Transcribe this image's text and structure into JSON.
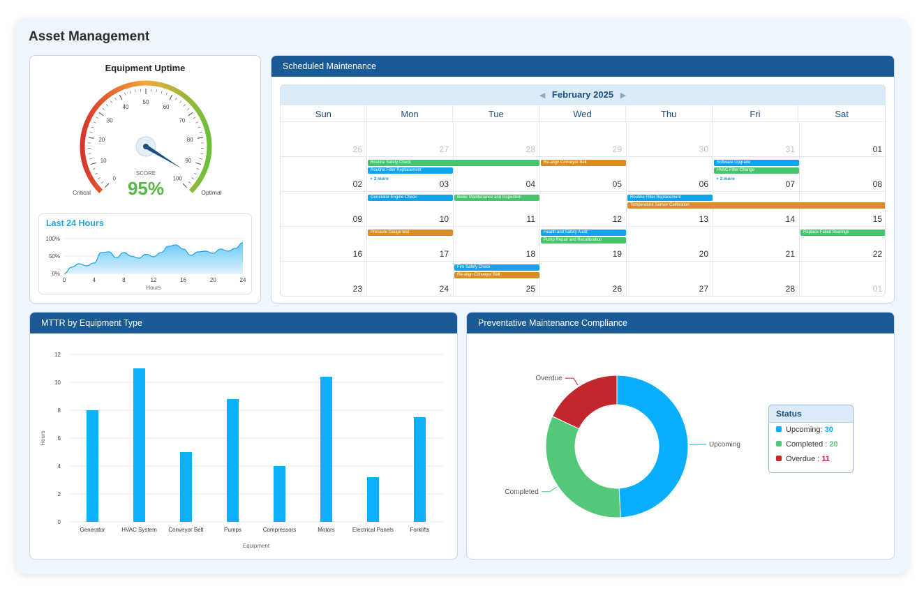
{
  "app": {
    "title": "Asset Management"
  },
  "uptime": {
    "title": "Equipment Uptime",
    "score_label": "SCORE",
    "score_value": "95%",
    "score_number": 95,
    "gauge_ticks": [
      "0",
      "10",
      "20",
      "30",
      "40",
      "50",
      "60",
      "70",
      "80",
      "90",
      "100"
    ],
    "low_label": "Critical",
    "high_label": "Optimal",
    "colors": {
      "red": "#d9342b",
      "yellow": "#f2a93b",
      "green": "#6bbf3b",
      "needle": "#1a4e85",
      "score": "#56b843"
    }
  },
  "last24": {
    "title": "Last 24 Hours",
    "xlabel": "Hours",
    "yticks": [
      "100%",
      "50%",
      "0%"
    ],
    "xticks": [
      "0",
      "4",
      "8",
      "12",
      "16",
      "20",
      "24"
    ],
    "x": [
      0,
      1,
      2,
      3,
      4,
      5,
      6,
      7,
      8,
      9,
      10,
      11,
      12,
      13,
      14,
      15,
      16,
      17,
      18,
      19,
      20,
      21,
      22,
      23,
      24
    ],
    "values": [
      0,
      18,
      28,
      22,
      30,
      60,
      62,
      45,
      60,
      50,
      44,
      55,
      48,
      60,
      78,
      82,
      70,
      52,
      62,
      64,
      58,
      70,
      64,
      72,
      88
    ]
  },
  "schedule": {
    "title": "Scheduled Maintenance",
    "month": "February 2025",
    "prev_icon": "◀",
    "next_icon": "▶",
    "weekdays": [
      "Sun",
      "Mon",
      "Tue",
      "Wed",
      "Thu",
      "Fri",
      "Sat"
    ],
    "weeks": [
      [
        {
          "d": "26",
          "m": true
        },
        {
          "d": "27",
          "m": true
        },
        {
          "d": "28",
          "m": true
        },
        {
          "d": "29",
          "m": true
        },
        {
          "d": "30",
          "m": true
        },
        {
          "d": "31",
          "m": true
        },
        {
          "d": "01",
          "m": false
        }
      ],
      [
        {
          "d": "02",
          "m": false
        },
        {
          "d": "03",
          "m": false
        },
        {
          "d": "04",
          "m": false
        },
        {
          "d": "05",
          "m": false
        },
        {
          "d": "06",
          "m": false
        },
        {
          "d": "07",
          "m": false
        },
        {
          "d": "08",
          "m": false
        }
      ],
      [
        {
          "d": "09",
          "m": false
        },
        {
          "d": "10",
          "m": false
        },
        {
          "d": "11",
          "m": false
        },
        {
          "d": "12",
          "m": false
        },
        {
          "d": "13",
          "m": false
        },
        {
          "d": "14",
          "m": false
        },
        {
          "d": "15",
          "m": false
        }
      ],
      [
        {
          "d": "16",
          "m": false
        },
        {
          "d": "17",
          "m": false
        },
        {
          "d": "18",
          "m": false
        },
        {
          "d": "19",
          "m": false
        },
        {
          "d": "20",
          "m": false
        },
        {
          "d": "21",
          "m": false
        },
        {
          "d": "22",
          "m": false
        }
      ],
      [
        {
          "d": "23",
          "m": false
        },
        {
          "d": "24",
          "m": false
        },
        {
          "d": "25",
          "m": false
        },
        {
          "d": "26",
          "m": false
        },
        {
          "d": "27",
          "m": false
        },
        {
          "d": "28",
          "m": false
        },
        {
          "d": "01",
          "m": true
        }
      ]
    ],
    "events": [
      {
        "label": "Routine Safety Check",
        "color": "green",
        "week": 1,
        "day": 1,
        "span": 2,
        "slot": 0
      },
      {
        "label": "Routine Filter Replacement",
        "color": "blue",
        "week": 1,
        "day": 1,
        "span": 1,
        "slot": 1
      },
      {
        "label": "Re-align Conveyor Belt",
        "color": "orange",
        "week": 1,
        "day": 3,
        "span": 1,
        "slot": 0
      },
      {
        "label": "Software Upgrade",
        "color": "blue",
        "week": 1,
        "day": 5,
        "span": 1,
        "slot": 0
      },
      {
        "label": "HVAC Filter Change",
        "color": "green",
        "week": 1,
        "day": 5,
        "span": 1,
        "slot": 1
      },
      {
        "label": "Generator Engine Check",
        "color": "blue",
        "week": 2,
        "day": 1,
        "span": 1,
        "slot": 0
      },
      {
        "label": "Boiler Maintenance and Inspection",
        "color": "green",
        "week": 2,
        "day": 2,
        "span": 1,
        "slot": 0
      },
      {
        "label": "Routine Filter Replacement",
        "color": "blue",
        "week": 2,
        "day": 4,
        "span": 1,
        "slot": 0
      },
      {
        "label": "Temperature Sensor Calibration",
        "color": "orange",
        "week": 2,
        "day": 4,
        "span": 3,
        "slot": 1
      },
      {
        "label": "Pressure Gauge test",
        "color": "orange",
        "week": 3,
        "day": 1,
        "span": 1,
        "slot": 0
      },
      {
        "label": "Health and Safety Audit",
        "color": "blue",
        "week": 3,
        "day": 3,
        "span": 1,
        "slot": 0
      },
      {
        "label": "Pump Repair and Recalibration",
        "color": "green",
        "week": 3,
        "day": 3,
        "span": 1,
        "slot": 1
      },
      {
        "label": "Replace Failed Bearings",
        "color": "green",
        "week": 3,
        "day": 6,
        "span": 1,
        "slot": 0
      },
      {
        "label": "Fire Safety Check",
        "color": "blue",
        "week": 4,
        "day": 2,
        "span": 1,
        "slot": 0
      },
      {
        "label": "Re-align Conveyor Belt",
        "color": "orange",
        "week": 4,
        "day": 2,
        "span": 1,
        "slot": 1
      }
    ],
    "more_links": [
      {
        "label": "+ 3 more",
        "week": 1,
        "day": 1
      },
      {
        "label": "+ 2 more",
        "week": 1,
        "day": 5
      }
    ]
  },
  "mttr": {
    "title": "MTTR by Equipment Type",
    "chart_data": {
      "type": "bar",
      "categories": [
        "Generator",
        "HVAC System",
        "Conveyor Belt",
        "Pumps",
        "Compressors",
        "Motors",
        "Electrical Panels",
        "Forklifts"
      ],
      "values": [
        8,
        11,
        5,
        8.8,
        4,
        10.4,
        3.2,
        7.5
      ],
      "xlabel": "Equipment",
      "ylabel": "Hours",
      "ylim": [
        0,
        12
      ],
      "yticks": [
        "0",
        "2",
        "4",
        "6",
        "8",
        "10",
        "12"
      ],
      "color": "#0db0fb"
    }
  },
  "compliance": {
    "title": "Preventative Maintenance Compliance",
    "legend_title": "Status",
    "chart_data": {
      "type": "pie",
      "categories": [
        "Upcoming",
        "Completed",
        "Overdue"
      ],
      "values": [
        30,
        20,
        11
      ],
      "colors": [
        "#06aefb",
        "#52c878",
        "#c1272d"
      ]
    },
    "legend": [
      {
        "label": "Upcoming: ",
        "value": "30",
        "color": "#06aefb"
      },
      {
        "label": "Completed : ",
        "value": "20",
        "color": "#52c878"
      },
      {
        "label": "Overdue : ",
        "value": "11",
        "color": "#c1272d"
      }
    ]
  }
}
